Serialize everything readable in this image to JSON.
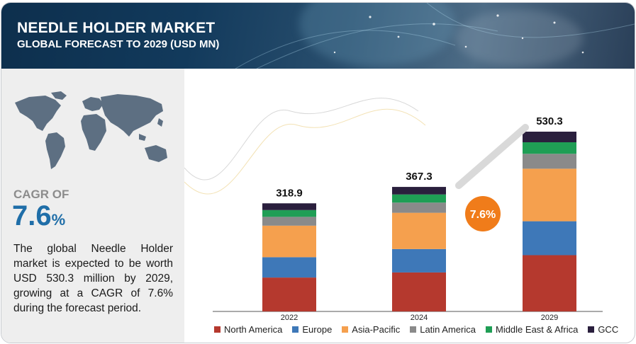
{
  "header": {
    "title": "NEEDLE HOLDER MARKET",
    "subtitle": "GLOBAL FORECAST TO 2029 (USD MN)"
  },
  "summary": {
    "cagr_label": "CAGR OF",
    "cagr_value": "7.6",
    "cagr_unit": "%",
    "description": "The global Needle Holder market is expected to be worth USD 530.3 million by 2029, growing at a CAGR of 7.6% during the forecast period."
  },
  "chart_data": {
    "type": "bar",
    "stacked": true,
    "categories": [
      "2022",
      "2024",
      "2029"
    ],
    "totals": [
      "318.9",
      "367.3",
      "530.3"
    ],
    "total_values": [
      318.9,
      367.3,
      530.3
    ],
    "series": [
      {
        "name": "North America",
        "color": "#b5392e",
        "values": [
          100,
          115,
          166
        ]
      },
      {
        "name": "Europe",
        "color": "#3e78b8",
        "values": [
          60,
          69,
          100
        ]
      },
      {
        "name": "Asia-Pacific",
        "color": "#f5a04e",
        "values": [
          93,
          107,
          155
        ]
      },
      {
        "name": "Latin America",
        "color": "#8a8a8a",
        "values": [
          26,
          30,
          44
        ]
      },
      {
        "name": "Middle East & Africa",
        "color": "#1f9e55",
        "values": [
          20,
          24,
          34
        ]
      },
      {
        "name": "GCC",
        "color": "#2a1f3d",
        "values": [
          19.9,
          22.3,
          31.3
        ]
      }
    ],
    "cagr_badge": "7.6%",
    "legend_position": "bottom",
    "grid": false
  },
  "colors": {
    "header_bg": "#123a5c",
    "accent_blue": "#1f6ea8",
    "badge_orange": "#f07c1a"
  }
}
